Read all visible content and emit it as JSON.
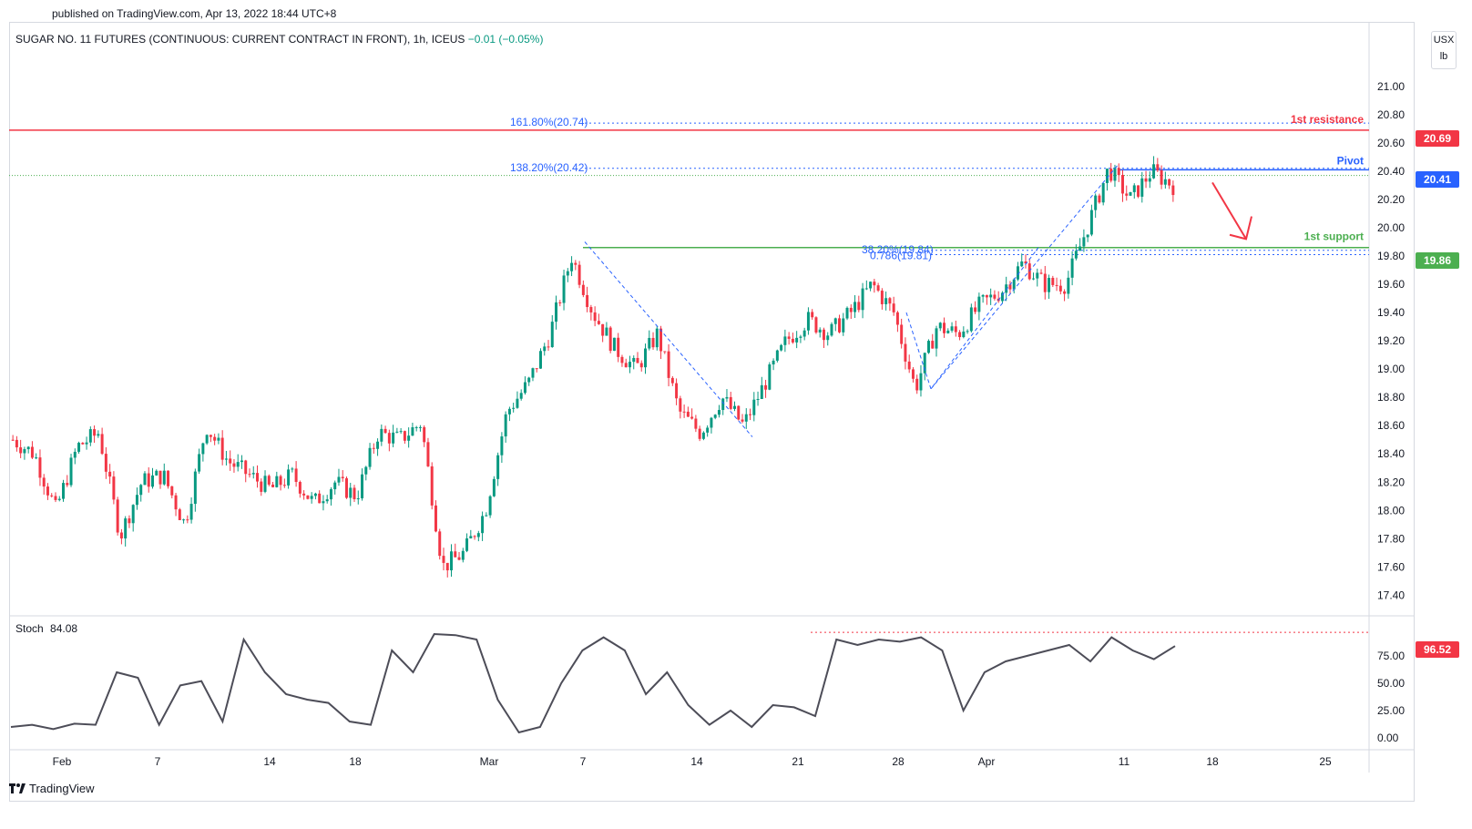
{
  "published": "published on TradingView.com, Apr 13, 2022 18:44 UTC+8",
  "symbol": {
    "title": "SUGAR NO. 11 FUTURES (CONTINUOUS: CURRENT CONTRACT IN FRONT), 1h, ICEUS",
    "change": "−0.01 (−0.05%)"
  },
  "currency": {
    "line1": "USX",
    "line2": "lb"
  },
  "brand": "TradingView",
  "colors": {
    "up": "#089981",
    "down": "#f23645",
    "resistance": "#f23645",
    "pivot": "#2962ff",
    "support": "#4caf50",
    "fib": "#2962ff",
    "stoch": "#4d4d58"
  },
  "annotations": {
    "resistance_label": "1st resistance",
    "pivot_label": "Pivot",
    "support_label": "1st support",
    "fib_1618": "161.80%(20.74)",
    "fib_1382": "138.20%(20.42)",
    "fib_382": "38.20%(19.84)",
    "fib_786": "0.786(19.81)"
  },
  "price_tags": {
    "resistance": "20.69",
    "pivot": "20.41",
    "support": "19.86",
    "stoch": "96.52"
  },
  "stoch": {
    "label": "Stoch",
    "value": "84.08"
  },
  "chart_data": {
    "type": "candlestick",
    "title": "SUGAR NO. 11 FUTURES (CONTINUOUS: CURRENT CONTRACT IN FRONT), 1h, ICEUS",
    "price_ticks": [
      "17.40",
      "17.60",
      "17.80",
      "18.00",
      "18.20",
      "18.40",
      "18.60",
      "18.80",
      "19.00",
      "19.20",
      "19.40",
      "19.60",
      "19.80",
      "20.00",
      "20.20",
      "20.40",
      "20.60",
      "20.80",
      "21.00"
    ],
    "ylim": [
      17.28,
      21.45
    ],
    "x_ticks": [
      "Feb",
      "7",
      "14",
      "18",
      "Mar",
      "7",
      "14",
      "21",
      "28",
      "Apr",
      "11",
      "18",
      "25"
    ],
    "levels": {
      "resistance": 20.69,
      "pivot": 20.41,
      "support": 19.86
    },
    "fib_levels": [
      20.74,
      20.42,
      19.84,
      19.81
    ],
    "price_path": [
      18.5,
      18.4,
      18.0,
      18.45,
      18.55,
      17.82,
      18.2,
      18.25,
      17.9,
      18.6,
      18.35,
      18.25,
      18.15,
      18.25,
      18.05,
      18.2,
      18.1,
      18.55,
      18.5,
      18.62,
      17.6,
      17.7,
      18.0,
      18.7,
      18.9,
      19.25,
      19.8,
      19.4,
      19.15,
      19.0,
      19.25,
      18.7,
      18.55,
      18.8,
      18.6,
      18.9,
      19.2,
      19.35,
      19.25,
      19.4,
      19.6,
      19.4,
      18.86,
      19.3,
      19.25,
      19.45,
      19.55,
      19.75,
      19.6,
      19.6,
      20.0,
      20.42,
      20.2,
      20.4,
      20.3
    ],
    "stoch_ticks": [
      "0.00",
      "25.00",
      "50.00",
      "75.00"
    ],
    "stoch_range": [
      0,
      100
    ],
    "stoch_path": [
      10,
      12,
      8,
      13,
      12,
      60,
      55,
      12,
      48,
      52,
      15,
      90,
      60,
      40,
      35,
      32,
      15,
      12,
      80,
      60,
      95,
      94,
      90,
      35,
      5,
      10,
      50,
      80,
      92,
      80,
      40,
      60,
      30,
      12,
      25,
      10,
      30,
      28,
      20,
      90,
      85,
      90,
      88,
      92,
      80,
      25,
      60,
      70,
      75,
      80,
      85,
      70,
      92,
      80,
      72,
      84
    ]
  }
}
